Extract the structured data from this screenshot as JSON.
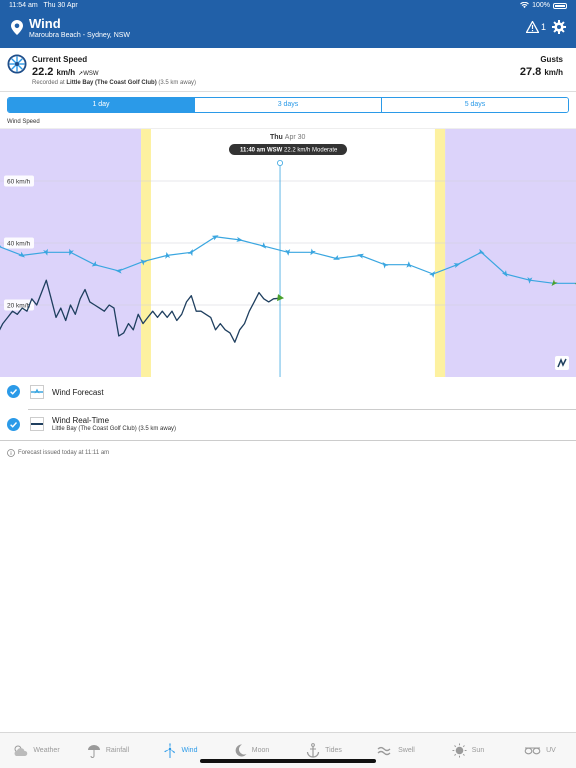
{
  "status_bar": {
    "time": "11:54 am",
    "date": "Thu 30 Apr",
    "battery": "100%"
  },
  "header": {
    "title": "Wind",
    "location": "Maroubra Beach - Sydney, NSW",
    "warning_count": "1"
  },
  "current": {
    "label": "Current Speed",
    "speed": "22.2",
    "unit": "km/h",
    "direction": "WSW",
    "recorded_prefix": "Recorded at",
    "station": "Little Bay (The Coast Golf Club)",
    "distance": "(3.5 km away)",
    "gusts_label": "Gusts",
    "gusts": "27.8",
    "gusts_unit": "km/h"
  },
  "segments": [
    "1 day",
    "3 days",
    "5 days"
  ],
  "selected_segment": "1 day",
  "chart_title": "Wind Speed",
  "chart_data": {
    "type": "line",
    "y_ticks": [
      "60 km/h",
      "40 km/h",
      "20 km/h"
    ],
    "day_label": "Thu",
    "day_date": "Apr 30",
    "tooltip_time": "11:40 am WSW",
    "tooltip_value": "22.2 km/h Moderate",
    "colors": {
      "forecast": "#3aa6e0",
      "observed": "#1f3f5f",
      "night": "#dcd3fa",
      "twilight": "#fdf1a0",
      "arrow_green": "#4aa02c"
    },
    "x_hours": [
      0,
      3,
      6,
      9,
      12,
      15,
      18,
      21,
      24
    ],
    "series": [
      {
        "name": "Wind Forecast",
        "x": [
          0,
          1,
          2,
          3,
          4,
          5,
          6,
          7,
          8,
          9,
          10,
          11,
          12,
          13,
          14,
          15,
          16,
          17,
          18,
          19,
          20,
          21,
          22,
          23,
          24
        ],
        "values": [
          39,
          36,
          37,
          37,
          33,
          31,
          34,
          36,
          37,
          42,
          41,
          39,
          37,
          37,
          35,
          36,
          33,
          33,
          30,
          33,
          37,
          30,
          28,
          27,
          27
        ]
      },
      {
        "name": "Wind Real-Time",
        "x": [
          0,
          0.2,
          0.4,
          0.6,
          0.8,
          1.0,
          1.2,
          1.4,
          1.6,
          1.8,
          2.0,
          2.2,
          2.4,
          2.6,
          2.8,
          3.0,
          3.2,
          3.4,
          3.6,
          3.8,
          4.0,
          4.2,
          4.4,
          4.6,
          4.8,
          5.0,
          5.2,
          5.4,
          5.6,
          5.8,
          6.0,
          6.2,
          6.4,
          6.6,
          6.8,
          7.0,
          7.2,
          7.4,
          7.6,
          7.8,
          8.0,
          8.2,
          8.4,
          8.6,
          8.8,
          9.0,
          9.2,
          9.4,
          9.6,
          9.8,
          10.0,
          10.2,
          10.4,
          10.6,
          10.8,
          11.0,
          11.2,
          11.4,
          11.67
        ],
        "values": [
          11,
          14,
          16,
          18,
          17,
          19,
          18,
          22,
          20,
          24,
          28,
          22,
          16,
          19,
          15,
          20,
          17,
          22,
          25,
          21,
          20,
          19,
          18,
          20,
          19,
          10,
          11,
          14,
          12,
          17,
          14,
          16,
          18,
          16,
          18,
          16,
          18,
          15,
          17,
          21,
          23,
          18,
          18,
          17,
          16,
          12,
          14,
          12,
          11,
          8,
          12,
          14,
          18,
          21,
          24,
          22,
          21,
          22,
          22.2
        ]
      }
    ],
    "night_ranges": [
      [
        0,
        5.92
      ],
      [
        18.5,
        24
      ]
    ],
    "twilight_ranges": [
      [
        5.92,
        6.33
      ],
      [
        18.08,
        18.5
      ]
    ],
    "now_hour": 11.67,
    "ylim": [
      0,
      80
    ]
  },
  "legend": [
    {
      "name": "Wind Forecast",
      "sub": ""
    },
    {
      "name": "Wind Real-Time",
      "sub": "Little Bay (The Coast Golf Club) (3.5 km away)"
    }
  ],
  "footer_note": "Forecast issued today at 11:11 am",
  "tabs": [
    {
      "label": "Weather",
      "icon": "cloud-sun-icon"
    },
    {
      "label": "Rainfall",
      "icon": "umbrella-icon"
    },
    {
      "label": "Wind",
      "icon": "wind-turbine-icon"
    },
    {
      "label": "Moon",
      "icon": "moon-icon"
    },
    {
      "label": "Tides",
      "icon": "anchor-icon"
    },
    {
      "label": "Swell",
      "icon": "wave-icon"
    },
    {
      "label": "Sun",
      "icon": "sun-icon"
    },
    {
      "label": "UV",
      "icon": "sunglasses-icon"
    }
  ],
  "active_tab": "Wind"
}
